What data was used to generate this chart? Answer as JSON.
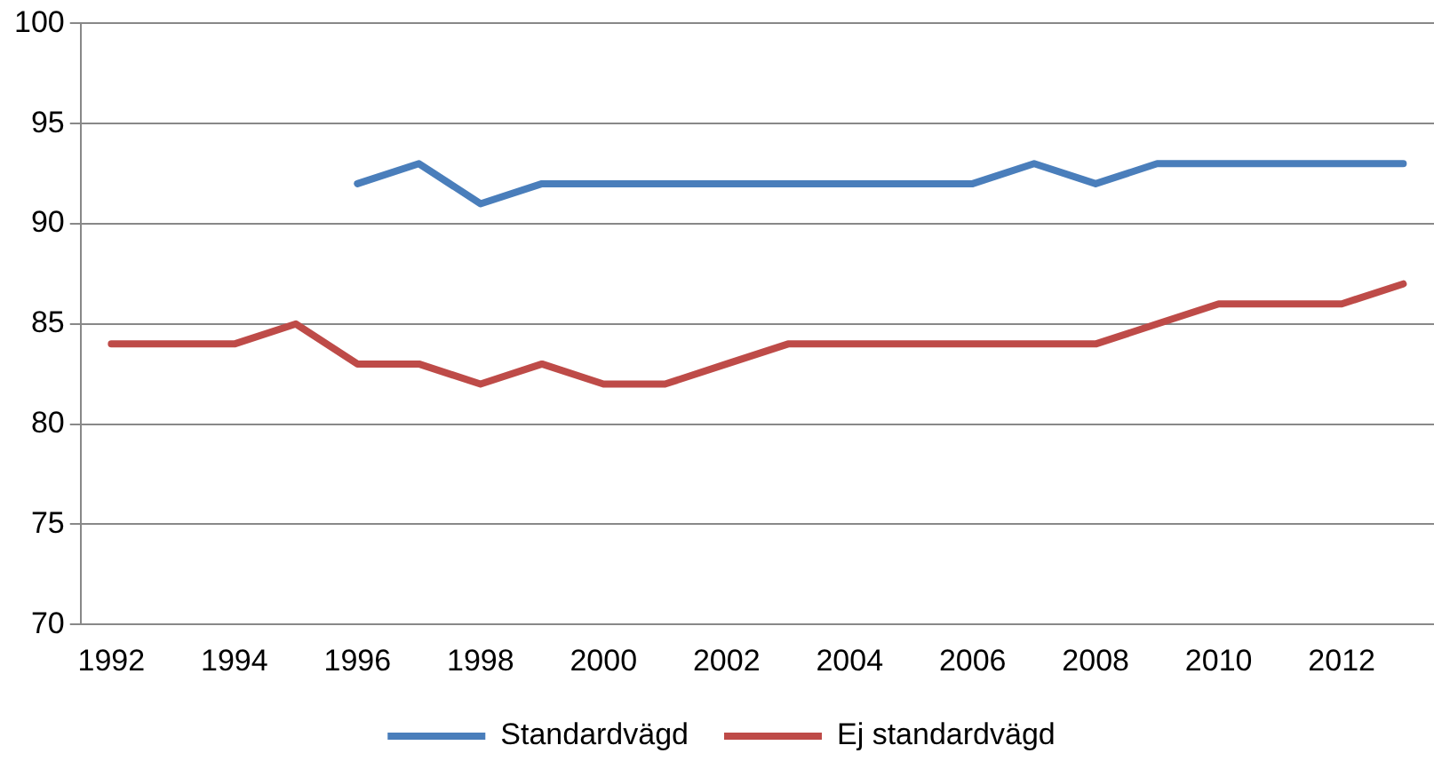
{
  "chart_data": {
    "type": "line",
    "categories": [
      "1992",
      null,
      "1994",
      null,
      "1996",
      null,
      "1998",
      null,
      "2000",
      null,
      "2002",
      null,
      "2004",
      null,
      "2006",
      null,
      "2008",
      null,
      "2010",
      null,
      "2012",
      null
    ],
    "series": [
      {
        "name": "Standardvägd",
        "color": "#4a7ebb",
        "values": [
          null,
          null,
          null,
          null,
          92,
          93,
          91,
          92,
          92,
          92,
          92,
          92,
          92,
          92,
          92,
          93,
          92,
          93,
          93,
          93,
          93,
          93
        ]
      },
      {
        "name": "Ej standardvägd",
        "color": "#be4b48",
        "values": [
          84,
          84,
          84,
          85,
          83,
          83,
          82,
          83,
          82,
          82,
          83,
          84,
          84,
          84,
          84,
          84,
          84,
          85,
          86,
          86,
          86,
          87
        ]
      }
    ],
    "ylim": [
      70,
      100
    ],
    "yticks": [
      70,
      75,
      80,
      85,
      90,
      95,
      100
    ],
    "grid": "y",
    "legend": "bottom",
    "marker": "none",
    "line_style": "solid"
  }
}
